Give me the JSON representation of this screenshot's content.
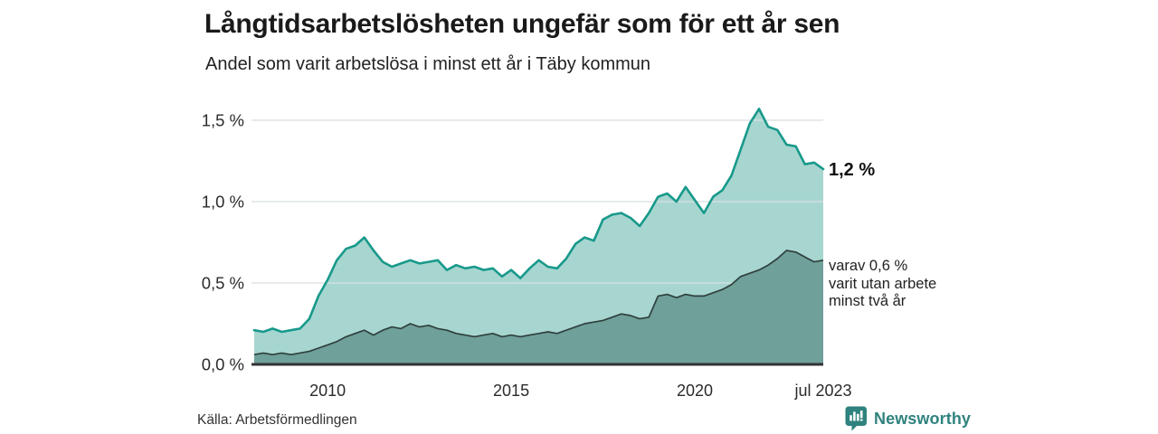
{
  "header": {
    "title": "Långtidsarbetslösheten ungefär som för ett år sen",
    "subtitle": "Andel som varit arbetslösa i minst ett år i Täby kommun"
  },
  "chart_data": {
    "type": "area",
    "title": "Långtidsarbetslösheten ungefär som för ett år sen",
    "subtitle": "Andel som varit arbetslösa i minst ett år i Täby kommun",
    "xlabel": "",
    "ylabel": "",
    "xlim": [
      2008,
      2023.5
    ],
    "ylim": [
      0,
      1.62
    ],
    "grid": "horizontal",
    "legend_position": "right-annotations",
    "x": [
      2008,
      2008.25,
      2008.5,
      2008.75,
      2009,
      2009.25,
      2009.5,
      2009.75,
      2010,
      2010.25,
      2010.5,
      2010.75,
      2011,
      2011.25,
      2011.5,
      2011.75,
      2012,
      2012.25,
      2012.5,
      2012.75,
      2013,
      2013.25,
      2013.5,
      2013.75,
      2014,
      2014.25,
      2014.5,
      2014.75,
      2015,
      2015.25,
      2015.5,
      2015.75,
      2016,
      2016.25,
      2016.5,
      2016.75,
      2017,
      2017.25,
      2017.5,
      2017.75,
      2018,
      2018.25,
      2018.5,
      2018.75,
      2019,
      2019.25,
      2019.5,
      2019.75,
      2020,
      2020.25,
      2020.5,
      2020.75,
      2021,
      2021.25,
      2021.5,
      2021.75,
      2022,
      2022.25,
      2022.5,
      2022.75,
      2023,
      2023.25,
      2023.5
    ],
    "series": [
      {
        "name": "Andel arbetslösa minst ett år",
        "line_color": "#18998b",
        "fill_color": "#a7d6d0",
        "values": [
          0.21,
          0.2,
          0.22,
          0.2,
          0.21,
          0.22,
          0.28,
          0.42,
          0.52,
          0.64,
          0.71,
          0.73,
          0.78,
          0.7,
          0.63,
          0.6,
          0.62,
          0.64,
          0.62,
          0.63,
          0.64,
          0.58,
          0.61,
          0.59,
          0.6,
          0.58,
          0.59,
          0.54,
          0.58,
          0.53,
          0.59,
          0.64,
          0.6,
          0.59,
          0.65,
          0.74,
          0.78,
          0.76,
          0.89,
          0.92,
          0.93,
          0.9,
          0.85,
          0.93,
          1.03,
          1.05,
          1.0,
          1.09,
          1.01,
          0.93,
          1.03,
          1.07,
          1.16,
          1.32,
          1.48,
          1.57,
          1.46,
          1.44,
          1.35,
          1.34,
          1.23,
          1.24,
          1.2
        ]
      },
      {
        "name": "varav utan arbete minst två år",
        "line_color": "#2f403c",
        "fill_color": "#6fa09a",
        "values": [
          0.06,
          0.07,
          0.06,
          0.07,
          0.06,
          0.07,
          0.08,
          0.1,
          0.12,
          0.14,
          0.17,
          0.19,
          0.21,
          0.18,
          0.21,
          0.23,
          0.22,
          0.25,
          0.23,
          0.24,
          0.22,
          0.21,
          0.19,
          0.18,
          0.17,
          0.18,
          0.19,
          0.17,
          0.18,
          0.17,
          0.18,
          0.19,
          0.2,
          0.19,
          0.21,
          0.23,
          0.25,
          0.26,
          0.27,
          0.29,
          0.31,
          0.3,
          0.28,
          0.29,
          0.42,
          0.43,
          0.41,
          0.43,
          0.42,
          0.42,
          0.44,
          0.46,
          0.49,
          0.54,
          0.56,
          0.58,
          0.61,
          0.65,
          0.7,
          0.69,
          0.66,
          0.63,
          0.64
        ]
      }
    ],
    "y_ticks": [
      {
        "value": 0,
        "label": "0,0 %"
      },
      {
        "value": 0.5,
        "label": "0,5 %"
      },
      {
        "value": 1,
        "label": "1,0 %"
      },
      {
        "value": 1.5,
        "label": "1,5 %"
      }
    ],
    "x_ticks": [
      {
        "value": 2010,
        "label": "2010"
      },
      {
        "value": 2015,
        "label": "2015"
      },
      {
        "value": 2020,
        "label": "2020"
      },
      {
        "value": 2023.5,
        "label": "jul 2023"
      }
    ],
    "annotations": {
      "latest_total": "1,2 %",
      "secondary_line1": "varav 0,6 %",
      "secondary_line2": "varit utan arbete",
      "secondary_line3": "minst två år"
    }
  },
  "footer": {
    "source": "Källa: Arbetsförmedlingen",
    "brand": "Newsworthy"
  },
  "colors": {
    "total_line": "#18998b",
    "total_fill": "#a7d6d0",
    "secondary_line": "#2f403c",
    "secondary_fill": "#6fa09a",
    "gridline": "#d8dfe1",
    "baseline": "#333333",
    "axis_text": "#2b2b2b",
    "brand_teal": "#2f827e"
  }
}
